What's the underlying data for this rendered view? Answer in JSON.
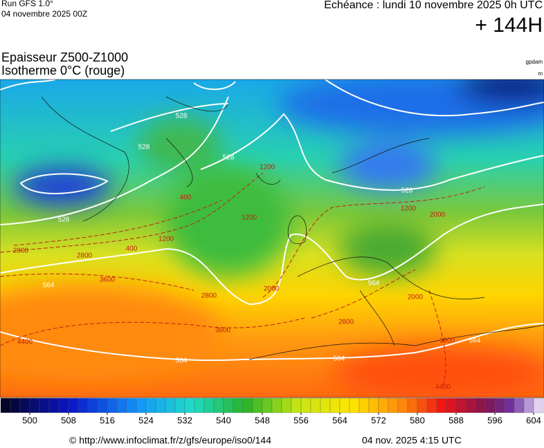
{
  "header": {
    "run": "Run GFS 1.0°",
    "run_date": "04 novembre 2025 00Z",
    "echeance": "Echéance : lundi 10 novembre 2025 0h UTC",
    "lead": "+ 144H"
  },
  "title": {
    "line1": "Epaisseur Z500-Z1000",
    "line2": "Isotherme 0°C (rouge)"
  },
  "units": {
    "thickness": "gpdam",
    "isotherm": "m"
  },
  "contour_labels": [
    "528",
    "528",
    "528",
    "528",
    "526",
    "564",
    "564",
    "564",
    "564",
    "2800",
    "2800",
    "3600",
    "3600",
    "3600",
    "2800",
    "1200",
    "1200",
    "1200",
    "400",
    "400",
    "2000",
    "2000",
    "4400",
    "4400",
    "2800",
    "2000",
    "1200",
    "564"
  ],
  "colorbar": {
    "range": [
      494,
      606
    ],
    "step": 2,
    "ticks": [
      500,
      508,
      516,
      524,
      532,
      540,
      548,
      556,
      564,
      572,
      580,
      588,
      596,
      604
    ]
  },
  "footer": {
    "url": "© http://www.infoclimat.fr/z/gfs/europe/iso0/144",
    "timestamp": "04 nov. 2025  4:15 UTC"
  }
}
